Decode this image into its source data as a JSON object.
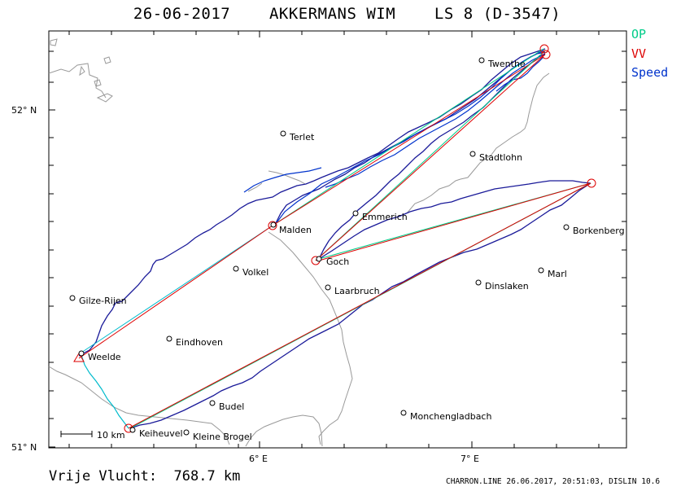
{
  "header": {
    "title": "26-06-2017    AKKERMANS WIM    LS 8 (D-3547)"
  },
  "legend": [
    {
      "label": "OP",
      "color": "#00cc88"
    },
    {
      "label": "VV",
      "color": "#dd0000"
    },
    {
      "label": "Speed",
      "color": "#0033cc"
    }
  ],
  "axes": {
    "lat_52": "52° N",
    "lat_51": "51° N",
    "lon_6": "6° E",
    "lon_7": "7° E"
  },
  "scale_bar": {
    "label": "10  km"
  },
  "places": [
    "Twenthe",
    "Terlet",
    "Stadtlohn",
    "Emmerich",
    "Malden",
    "Goch",
    "Borkenberg",
    "Volkel",
    "Marl",
    "Laarbruch",
    "Dinslaken",
    "Gilze-Rijen",
    "Eindhoven",
    "Weelde",
    "Budel",
    "Monchengladbach",
    "Keiheuvel",
    "Kleine Brogel"
  ],
  "distance": {
    "label": "Vrije Vlucht:  768.7 km"
  },
  "footer": {
    "text": "CHARRON.LINE 26.06.2017, 20:51:03, DISLIN 10.6"
  },
  "colors": {
    "border_gray": "#999999",
    "track": "#1a1a99",
    "track_blue": "#0033cc",
    "route_red": "#dd0000",
    "route_green": "#00cc88",
    "route_cyan": "#00bbcc"
  }
}
